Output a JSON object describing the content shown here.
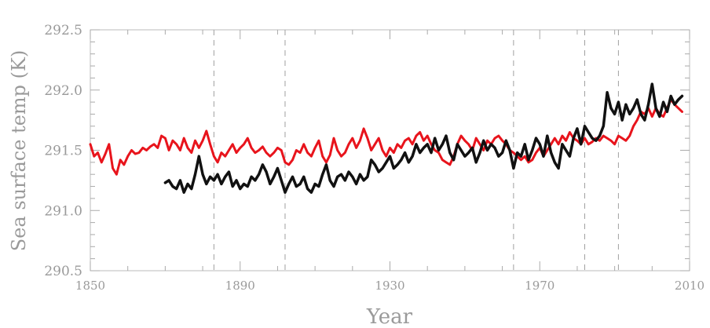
{
  "chart_data": {
    "type": "line",
    "title": "",
    "xlabel": "Year",
    "ylabel": "Sea surface temp (K)",
    "xlim": [
      1850,
      2010
    ],
    "ylim": [
      290.5,
      292.5
    ],
    "xticks": [
      1850,
      1890,
      1930,
      1970,
      2010
    ],
    "yticks": [
      "290.5",
      "291.0",
      "291.5",
      "292.0",
      "292.5"
    ],
    "grid": false,
    "legend": "none",
    "vertical_reference_lines": [
      1883,
      1902,
      1963,
      1982,
      1991
    ],
    "series": [
      {
        "color": "#e8141c",
        "x": [
          1850,
          1851,
          1852,
          1853,
          1854,
          1855,
          1856,
          1857,
          1858,
          1859,
          1860,
          1861,
          1862,
          1863,
          1864,
          1865,
          1866,
          1867,
          1868,
          1869,
          1870,
          1871,
          1872,
          1873,
          1874,
          1875,
          1876,
          1877,
          1878,
          1879,
          1880,
          1881,
          1882,
          1883,
          1884,
          1885,
          1886,
          1887,
          1888,
          1889,
          1890,
          1891,
          1892,
          1893,
          1894,
          1895,
          1896,
          1897,
          1898,
          1899,
          1900,
          1901,
          1902,
          1903,
          1904,
          1905,
          1906,
          1907,
          1908,
          1909,
          1910,
          1911,
          1912,
          1913,
          1914,
          1915,
          1916,
          1917,
          1918,
          1919,
          1920,
          1921,
          1922,
          1923,
          1924,
          1925,
          1926,
          1927,
          1928,
          1929,
          1930,
          1931,
          1932,
          1933,
          1934,
          1935,
          1936,
          1937,
          1938,
          1939,
          1940,
          1941,
          1942,
          1943,
          1944,
          1945,
          1946,
          1947,
          1948,
          1949,
          1950,
          1951,
          1952,
          1953,
          1954,
          1955,
          1956,
          1957,
          1958,
          1959,
          1960,
          1961,
          1962,
          1963,
          1964,
          1965,
          1966,
          1967,
          1968,
          1969,
          1970,
          1971,
          1972,
          1973,
          1974,
          1975,
          1976,
          1977,
          1978,
          1979,
          1980,
          1981,
          1982,
          1983,
          1984,
          1985,
          1986,
          1987,
          1988,
          1989,
          1990,
          1991,
          1992,
          1993,
          1994,
          1995,
          1996,
          1997,
          1998,
          1999,
          2000,
          2001,
          2002,
          2003,
          2004,
          2005,
          2006,
          2007,
          2008
        ],
        "y": [
          291.55,
          291.45,
          291.48,
          291.4,
          291.47,
          291.55,
          291.35,
          291.3,
          291.42,
          291.38,
          291.45,
          291.5,
          291.47,
          291.48,
          291.52,
          291.5,
          291.53,
          291.55,
          291.52,
          291.62,
          291.6,
          291.5,
          291.58,
          291.55,
          291.5,
          291.6,
          291.52,
          291.48,
          291.58,
          291.52,
          291.58,
          291.66,
          291.55,
          291.45,
          291.4,
          291.48,
          291.45,
          291.5,
          291.55,
          291.48,
          291.52,
          291.55,
          291.6,
          291.52,
          291.48,
          291.5,
          291.53,
          291.48,
          291.45,
          291.48,
          291.52,
          291.5,
          291.4,
          291.38,
          291.42,
          291.5,
          291.48,
          291.55,
          291.48,
          291.45,
          291.52,
          291.58,
          291.45,
          291.4,
          291.46,
          291.6,
          291.5,
          291.45,
          291.48,
          291.55,
          291.6,
          291.52,
          291.58,
          291.68,
          291.6,
          291.5,
          291.55,
          291.6,
          291.5,
          291.45,
          291.52,
          291.48,
          291.55,
          291.52,
          291.58,
          291.6,
          291.55,
          291.62,
          291.65,
          291.58,
          291.62,
          291.55,
          291.5,
          291.48,
          291.42,
          291.4,
          291.38,
          291.45,
          291.55,
          291.62,
          291.58,
          291.55,
          291.5,
          291.6,
          291.55,
          291.5,
          291.58,
          291.55,
          291.6,
          291.62,
          291.58,
          291.55,
          291.5,
          291.48,
          291.45,
          291.42,
          291.45,
          291.4,
          291.42,
          291.48,
          291.52,
          291.45,
          291.5,
          291.55,
          291.6,
          291.55,
          291.62,
          291.58,
          291.65,
          291.6,
          291.58,
          291.55,
          291.6,
          291.55,
          291.57,
          291.6,
          291.58,
          291.62,
          291.6,
          291.58,
          291.55,
          291.62,
          291.6,
          291.58,
          291.62,
          291.7,
          291.75,
          291.82,
          291.8,
          291.85,
          291.78,
          291.85,
          291.8,
          291.78,
          291.85,
          291.92,
          291.88,
          291.85,
          291.82
        ],
        "stroke_width": 3
      },
      {
        "color": "#111111",
        "x": [
          1870,
          1871,
          1872,
          1873,
          1874,
          1875,
          1876,
          1877,
          1878,
          1879,
          1880,
          1881,
          1882,
          1883,
          1884,
          1885,
          1886,
          1887,
          1888,
          1889,
          1890,
          1891,
          1892,
          1893,
          1894,
          1895,
          1896,
          1897,
          1898,
          1899,
          1900,
          1901,
          1902,
          1903,
          1904,
          1905,
          1906,
          1907,
          1908,
          1909,
          1910,
          1911,
          1912,
          1913,
          1914,
          1915,
          1916,
          1917,
          1918,
          1919,
          1920,
          1921,
          1922,
          1923,
          1924,
          1925,
          1926,
          1927,
          1928,
          1929,
          1930,
          1931,
          1932,
          1933,
          1934,
          1935,
          1936,
          1937,
          1938,
          1939,
          1940,
          1941,
          1942,
          1943,
          1944,
          1945,
          1946,
          1947,
          1948,
          1949,
          1950,
          1951,
          1952,
          1953,
          1954,
          1955,
          1956,
          1957,
          1958,
          1959,
          1960,
          1961,
          1962,
          1963,
          1964,
          1965,
          1966,
          1967,
          1968,
          1969,
          1970,
          1971,
          1972,
          1973,
          1974,
          1975,
          1976,
          1977,
          1978,
          1979,
          1980,
          1981,
          1982,
          1983,
          1984,
          1985,
          1986,
          1987,
          1988,
          1989,
          1990,
          1991,
          1992,
          1993,
          1994,
          1995,
          1996,
          1997,
          1998,
          1999,
          2000,
          2001,
          2002,
          2003,
          2004,
          2005,
          2006,
          2007,
          2008
        ],
        "y": [
          291.23,
          291.25,
          291.2,
          291.18,
          291.25,
          291.15,
          291.22,
          291.18,
          291.3,
          291.45,
          291.3,
          291.22,
          291.28,
          291.25,
          291.3,
          291.22,
          291.28,
          291.32,
          291.2,
          291.25,
          291.18,
          291.22,
          291.2,
          291.28,
          291.25,
          291.3,
          291.38,
          291.32,
          291.22,
          291.28,
          291.35,
          291.25,
          291.15,
          291.22,
          291.28,
          291.2,
          291.22,
          291.28,
          291.18,
          291.15,
          291.22,
          291.2,
          291.3,
          291.38,
          291.25,
          291.2,
          291.28,
          291.3,
          291.25,
          291.32,
          291.28,
          291.22,
          291.3,
          291.25,
          291.28,
          291.42,
          291.38,
          291.32,
          291.35,
          291.4,
          291.45,
          291.35,
          291.38,
          291.42,
          291.48,
          291.4,
          291.45,
          291.55,
          291.48,
          291.52,
          291.55,
          291.48,
          291.6,
          291.5,
          291.55,
          291.62,
          291.48,
          291.42,
          291.55,
          291.5,
          291.45,
          291.48,
          291.52,
          291.4,
          291.48,
          291.58,
          291.5,
          291.55,
          291.52,
          291.45,
          291.48,
          291.58,
          291.5,
          291.35,
          291.48,
          291.45,
          291.55,
          291.42,
          291.5,
          291.6,
          291.55,
          291.45,
          291.62,
          291.48,
          291.4,
          291.35,
          291.55,
          291.5,
          291.45,
          291.6,
          291.68,
          291.55,
          291.7,
          291.65,
          291.6,
          291.58,
          291.62,
          291.7,
          291.98,
          291.85,
          291.8,
          291.9,
          291.75,
          291.88,
          291.8,
          291.85,
          291.92,
          291.8,
          291.75,
          291.88,
          292.05,
          291.85,
          291.78,
          291.9,
          291.82,
          291.95,
          291.88,
          291.92,
          291.95
        ],
        "stroke_width": 3.5
      }
    ]
  }
}
